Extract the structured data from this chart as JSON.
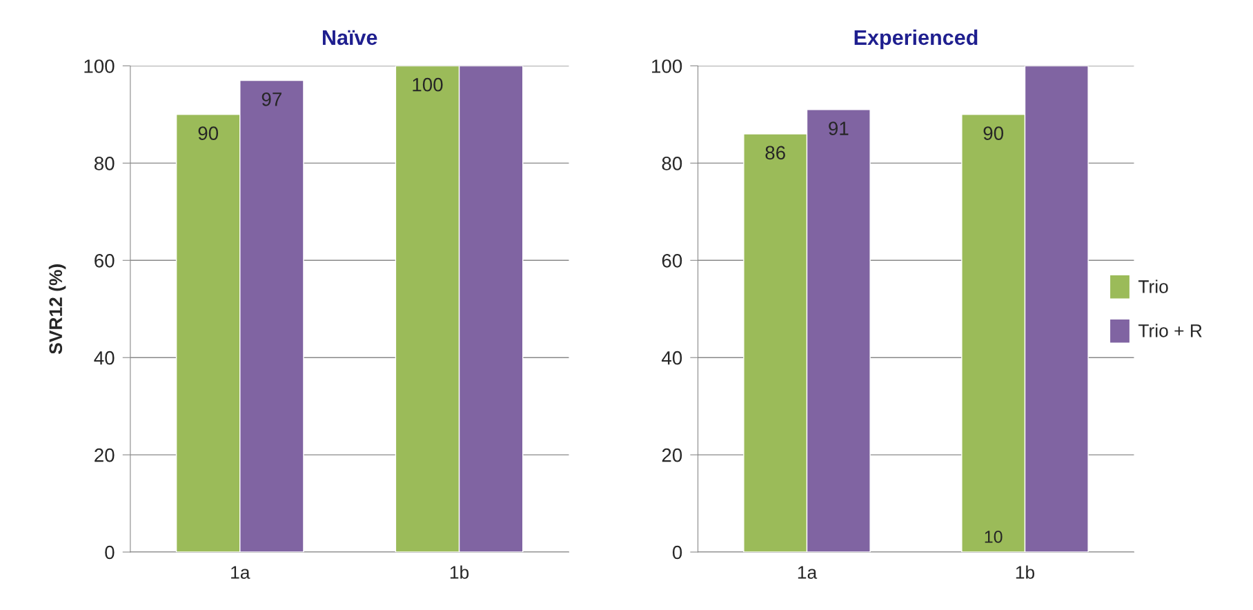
{
  "chart_data": [
    {
      "type": "bar",
      "title": "Naïve",
      "ylabel": "SVR12 (%)",
      "categories": [
        "1a",
        "1b"
      ],
      "ylim": [
        0,
        100
      ],
      "yticks": [
        0,
        20,
        40,
        60,
        80,
        100
      ],
      "grid": "y",
      "series": [
        {
          "color": "#9bbb59",
          "values": [
            90,
            100
          ],
          "value_labels": [
            "90",
            "100"
          ]
        },
        {
          "color": "#8064a2",
          "values": [
            97,
            100
          ],
          "value_labels": [
            "97",
            null
          ]
        }
      ]
    },
    {
      "type": "bar",
      "title": "Experienced",
      "categories": [
        "1a",
        "1b"
      ],
      "ylim": [
        0,
        100
      ],
      "yticks": [
        0,
        20,
        40,
        60,
        80,
        100
      ],
      "grid": "y",
      "legend": "right",
      "annotations": [
        {
          "text": "10",
          "x": "1b",
          "y": 0
        }
      ],
      "series": [
        {
          "name": "Trio",
          "color": "#9bbb59",
          "values": [
            86,
            90
          ],
          "value_labels": [
            "86",
            "90"
          ]
        },
        {
          "name": "Trio + R",
          "color": "#8064a2",
          "values": [
            91,
            100
          ],
          "value_labels": [
            "91",
            null
          ]
        }
      ]
    }
  ]
}
